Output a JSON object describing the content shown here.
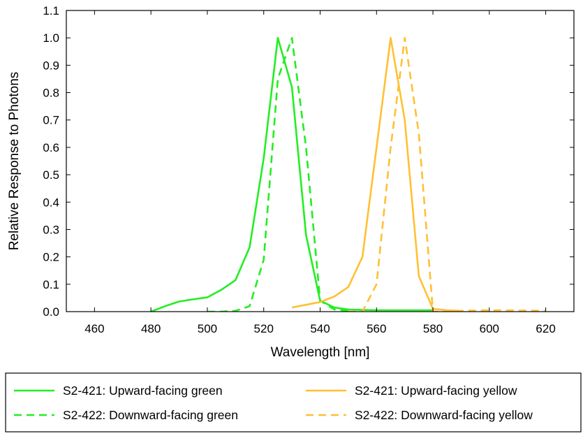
{
  "chart_data": {
    "type": "line",
    "title": "",
    "xlabel": "Wavelength [nm]",
    "ylabel": "Relative Response to Photons",
    "xlim": [
      450,
      630
    ],
    "ylim": [
      0,
      1.1
    ],
    "x_ticks": [
      460,
      480,
      500,
      520,
      540,
      560,
      580,
      600,
      620
    ],
    "y_ticks": [
      0.0,
      0.1,
      0.2,
      0.3,
      0.4,
      0.5,
      0.6,
      0.7,
      0.8,
      0.9,
      1.0,
      1.1
    ],
    "y_tick_labels": [
      "0.0",
      "0.1",
      "0.2",
      "0.3",
      "0.4",
      "0.5",
      "0.6",
      "0.7",
      "0.8",
      "0.9",
      "1.0",
      "1.1"
    ],
    "grid": false,
    "legend_position": "bottom",
    "series": [
      {
        "name": "S2-421: Upward-facing green",
        "color": "#22ee22",
        "dash": "solid",
        "x": [
          480,
          485,
          490,
          495,
          500,
          505,
          510,
          515,
          520,
          525,
          530,
          535,
          540,
          545,
          550,
          555,
          560,
          565,
          570,
          575,
          580
        ],
        "y": [
          0.0,
          0.02,
          0.037,
          0.045,
          0.052,
          0.08,
          0.115,
          0.235,
          0.56,
          1.0,
          0.82,
          0.28,
          0.04,
          0.015,
          0.008,
          0.006,
          0.005,
          0.005,
          0.005,
          0.005,
          0.005
        ]
      },
      {
        "name": "S2-422: Downward-facing green",
        "color": "#22ee22",
        "dash": "dashed",
        "x": [
          500,
          505,
          510,
          515,
          520,
          525,
          530,
          535,
          540,
          545,
          550
        ],
        "y": [
          0.0,
          0.0,
          0.003,
          0.02,
          0.19,
          0.85,
          1.0,
          0.6,
          0.04,
          0.008,
          0.003
        ]
      },
      {
        "name": "S2-421: Upward-facing yellow",
        "color": "#ffc033",
        "dash": "solid",
        "x": [
          530,
          535,
          540,
          545,
          550,
          555,
          560,
          565,
          570,
          575,
          580,
          585,
          590
        ],
        "y": [
          0.015,
          0.025,
          0.035,
          0.055,
          0.09,
          0.2,
          0.6,
          1.0,
          0.7,
          0.13,
          0.01,
          0.005,
          0.003
        ]
      },
      {
        "name": "S2-422: Downward-facing yellow",
        "color": "#ffc033",
        "dash": "dashed",
        "x": [
          550,
          555,
          560,
          565,
          570,
          575,
          580,
          590,
          600,
          610,
          620
        ],
        "y": [
          0.0,
          0.0,
          0.1,
          0.6,
          1.0,
          0.65,
          0.0,
          0.003,
          0.005,
          0.004,
          0.003
        ]
      }
    ]
  }
}
